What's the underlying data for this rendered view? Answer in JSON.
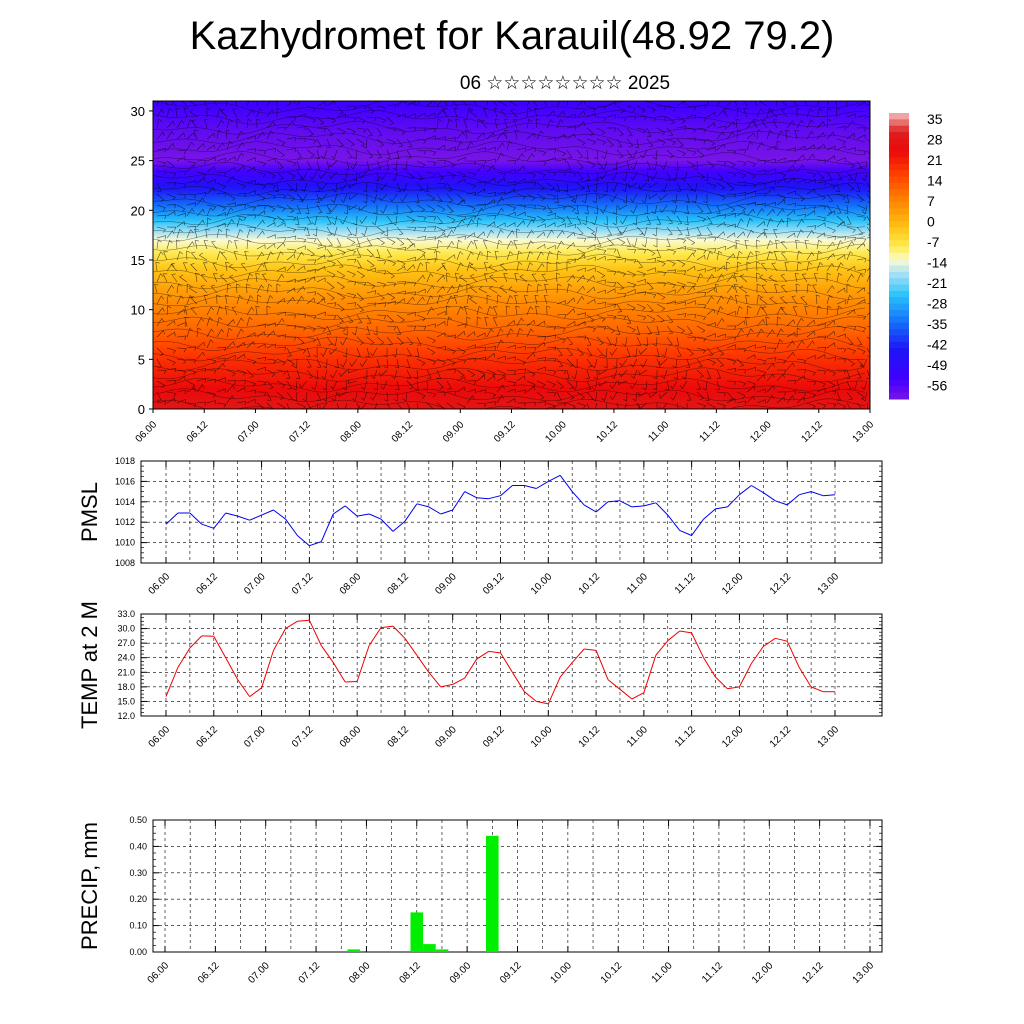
{
  "title": "Kazhydromet for Karauil(48.92 79.2)",
  "subtitle": "06 ☆☆☆☆☆☆☆☆ 2025",
  "chart_data": [
    {
      "type": "heatmap",
      "name": "temperature-wind cross section",
      "title": "",
      "xlabel": "",
      "ylabel": "",
      "x_ticks": [
        "06.00",
        "06.12",
        "07.00",
        "07.12",
        "08.00",
        "08.12",
        "09.00",
        "09.12",
        "10.00",
        "10.12",
        "11.00",
        "11.12",
        "12.00",
        "12.12",
        "13.00"
      ],
      "y_ticks": [
        0,
        5,
        10,
        15,
        20,
        25,
        30
      ],
      "ylim": [
        0,
        31
      ],
      "colorbar_labels": [
        "35",
        "28",
        "21",
        "14",
        "7",
        "0",
        "-7",
        "-14",
        "-21",
        "-28",
        "-35",
        "-42",
        "-49",
        "-56"
      ],
      "colorbar_range": [
        -63,
        42
      ],
      "profile_height": [
        0,
        2,
        5,
        8,
        11,
        14,
        17,
        20,
        23,
        25,
        28,
        31
      ],
      "profile_temperature": [
        32,
        28,
        22,
        14,
        8,
        0,
        -12,
        -32,
        -50,
        -63,
        -60,
        -55
      ],
      "overlay": "wind barbs"
    },
    {
      "type": "line",
      "ylabel": "PMSL",
      "ylim": [
        1008,
        1018
      ],
      "y_ticks": [
        "1008",
        "1010",
        "1012",
        "1014",
        "1016",
        "1018"
      ],
      "x_ticks": [
        "06.00",
        "06.12",
        "07.00",
        "07.12",
        "08.00",
        "08.12",
        "09.00",
        "09.12",
        "10.00",
        "10.12",
        "11.00",
        "11.12",
        "12.00",
        "12.12",
        "13.00"
      ],
      "color": "#0000ee",
      "x": [
        0,
        1,
        2,
        3,
        4,
        5,
        6,
        7,
        8,
        9,
        10,
        11,
        12,
        13,
        14,
        15,
        16,
        17,
        18,
        19,
        20,
        21,
        22,
        23,
        24,
        25,
        26,
        27,
        28,
        29,
        30,
        31,
        32,
        33,
        34,
        35,
        36,
        37,
        38,
        39,
        40,
        41,
        42,
        43,
        44,
        45,
        46,
        47,
        48,
        49,
        50,
        51,
        52,
        53,
        54,
        55,
        56
      ],
      "values": [
        1011.8,
        1012.9,
        1012.9,
        1011.8,
        1011.4,
        1012.9,
        1012.6,
        1012.2,
        1012.7,
        1013.2,
        1012.3,
        1010.7,
        1009.7,
        1010.1,
        1012.8,
        1013.6,
        1012.6,
        1012.8,
        1012.3,
        1011.1,
        1012.1,
        1013.8,
        1013.5,
        1012.8,
        1013.2,
        1015.0,
        1014.4,
        1014.3,
        1014.6,
        1015.6,
        1015.6,
        1015.3,
        1016.0,
        1016.6,
        1015.0,
        1013.7,
        1013.0,
        1014.0,
        1014.1,
        1013.5,
        1013.6,
        1013.9,
        1012.7,
        1011.2,
        1010.7,
        1012.3,
        1013.3,
        1013.5,
        1014.7,
        1015.6,
        1014.9,
        1014.1,
        1013.7,
        1014.7,
        1015.0,
        1014.6,
        1014.7
      ]
    },
    {
      "type": "line",
      "ylabel": "TEMP at 2 M",
      "ylim": [
        12,
        33
      ],
      "y_ticks": [
        "12.0",
        "15.0",
        "18.0",
        "21.0",
        "24.0",
        "27.0",
        "30.0",
        "33.0"
      ],
      "x_ticks": [
        "06.00",
        "06.12",
        "07.00",
        "07.12",
        "08.00",
        "08.12",
        "09.00",
        "09.12",
        "10.00",
        "10.12",
        "11.00",
        "11.12",
        "12.00",
        "12.12",
        "13.00"
      ],
      "color": "#ee0000",
      "x": [
        0,
        1,
        2,
        3,
        4,
        5,
        6,
        7,
        8,
        9,
        10,
        11,
        12,
        13,
        14,
        15,
        16,
        17,
        18,
        19,
        20,
        21,
        22,
        23,
        24,
        25,
        26,
        27,
        28,
        29,
        30,
        31,
        32,
        33,
        34,
        35,
        36,
        37,
        38,
        39,
        40,
        41,
        42,
        43,
        44,
        45,
        46,
        47,
        48,
        49,
        50,
        51,
        52,
        53,
        54,
        55,
        56
      ],
      "values": [
        16.0,
        22.0,
        26.0,
        28.5,
        28.4,
        24.0,
        19.5,
        16.0,
        17.8,
        25.5,
        30.0,
        31.5,
        31.7,
        26.5,
        23.0,
        19.0,
        19.1,
        26.5,
        30.2,
        30.5,
        28.0,
        24.5,
        21.0,
        18.0,
        18.5,
        19.8,
        23.7,
        25.3,
        25.0,
        21.0,
        17.0,
        15.0,
        14.5,
        20.0,
        23.0,
        25.8,
        25.5,
        19.5,
        17.5,
        15.5,
        16.8,
        24.5,
        27.5,
        29.5,
        29.1,
        24.0,
        20.0,
        17.6,
        18.0,
        22.8,
        26.3,
        28.0,
        27.4,
        22.0,
        18.0,
        17.0,
        17.0
      ]
    },
    {
      "type": "bar",
      "ylabel": "PRECIP, mm",
      "ylim": [
        0,
        0.5
      ],
      "y_ticks": [
        "0.00",
        "0.10",
        "0.20",
        "0.30",
        "0.40",
        "0.50"
      ],
      "x_ticks": [
        "06.00",
        "06.12",
        "07.00",
        "07.12",
        "08.00",
        "08.12",
        "09.00",
        "09.12",
        "10.00",
        "10.12",
        "11.00",
        "11.12",
        "12.00",
        "12.12",
        "13.00"
      ],
      "color": "#00ee00",
      "bars": [
        {
          "x": 15,
          "value": 0.01
        },
        {
          "x": 20,
          "value": 0.15
        },
        {
          "x": 21,
          "value": 0.03
        },
        {
          "x": 22,
          "value": 0.01
        },
        {
          "x": 26,
          "value": 0.44
        }
      ]
    }
  ]
}
